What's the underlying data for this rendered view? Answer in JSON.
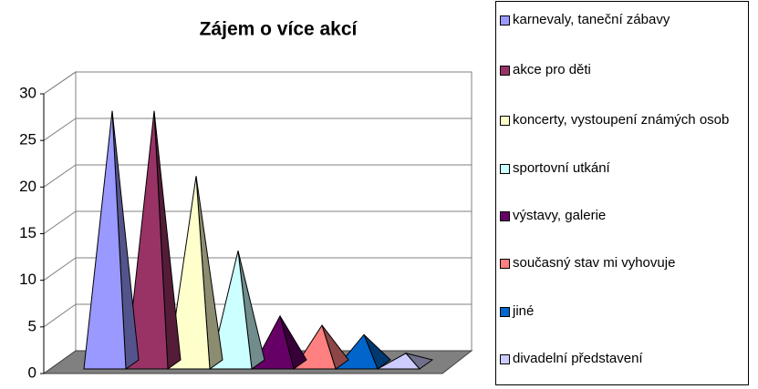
{
  "chart_data": {
    "type": "pyramid3d",
    "title": "Zájem o více akcí",
    "categories": [
      "karnevaly, taneční zábavy",
      "akce pro děti",
      "koncerty, vystoupení známých osob",
      "sportovní utkání",
      "výstavy, galerie",
      "současný stav mi vyhovuje",
      "jiné",
      "divadelní představení"
    ],
    "values": [
      27,
      27,
      20,
      12,
      5,
      4,
      3,
      1
    ],
    "colors": [
      "#9999ff",
      "#993366",
      "#ffffcc",
      "#ccffff",
      "#660066",
      "#ff8080",
      "#0066cc",
      "#ccccff"
    ],
    "ylim": [
      0,
      30
    ],
    "yticks": [
      0,
      5,
      10,
      15,
      20,
      25,
      30
    ],
    "grid": true,
    "legend": "right"
  }
}
